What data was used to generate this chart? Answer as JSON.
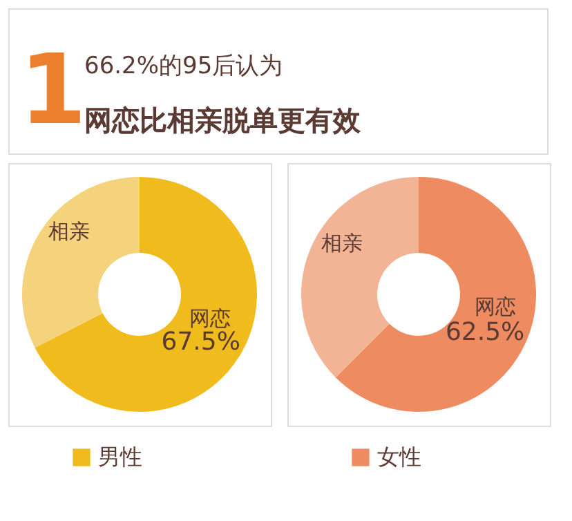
{
  "chart_data": [
    {
      "type": "other",
      "title": "66.2%的95后认为",
      "subtitle": "网恋比相亲脱单更有效",
      "annotations": [
        "1"
      ]
    },
    {
      "type": "donut",
      "categories": [
        "网恋",
        "相亲"
      ],
      "values": [
        67.5,
        32.5
      ],
      "colors": [
        "#f0bb1c",
        "#f5d27c"
      ],
      "value_labels": [
        "67.5%",
        null
      ],
      "xlabel": "男性"
    },
    {
      "type": "donut",
      "categories": [
        "网恋",
        "相亲"
      ],
      "values": [
        62.5,
        37.5
      ],
      "colors": [
        "#ee8b60",
        "#f3b496"
      ],
      "value_labels": [
        "62.5%",
        null
      ],
      "xlabel": "女性"
    }
  ]
}
